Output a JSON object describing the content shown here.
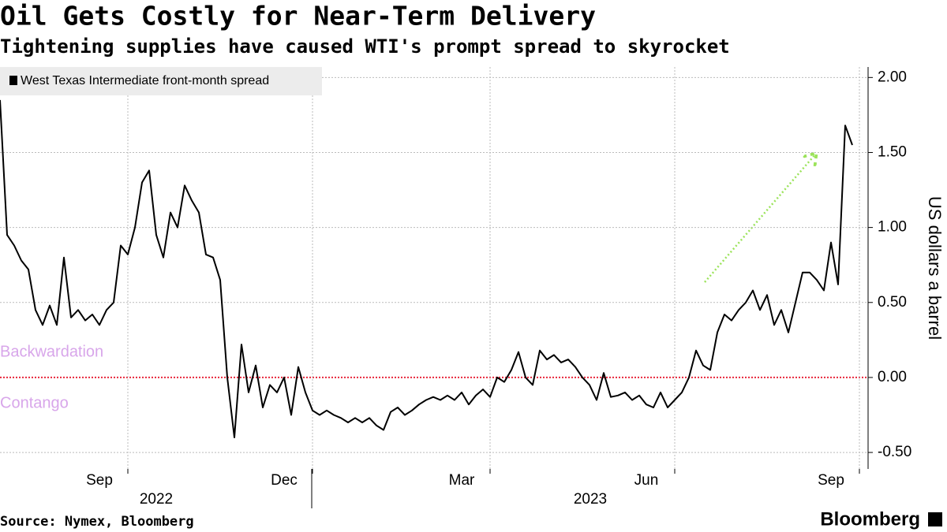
{
  "chart_data": {
    "type": "line",
    "title": "Oil Gets Costly for Near-Term Delivery",
    "subtitle": "Tightening supplies have caused WTI's prompt spread to skyrocket",
    "y_label": "US dollars a barrel",
    "source": "Source: Nymex, Bloomberg",
    "brand": "Bloomberg",
    "annotations": [
      "Backwardation",
      "Contango"
    ],
    "years": [
      "2022",
      "2023"
    ],
    "categories": [
      null,
      null,
      null,
      null,
      null,
      null,
      null,
      null,
      null,
      null,
      null,
      null,
      null,
      null,
      "Sep",
      null,
      null,
      null,
      null,
      null,
      null,
      null,
      null,
      null,
      null,
      null,
      null,
      null,
      null,
      null,
      null,
      null,
      null,
      null,
      null,
      null,
      null,
      null,
      null,
      null,
      "Dec",
      null,
      null,
      null,
      null,
      null,
      null,
      null,
      null,
      null,
      null,
      null,
      null,
      null,
      null,
      null,
      null,
      null,
      null,
      null,
      null,
      null,
      null,
      null,
      null,
      "Mar",
      null,
      null,
      null,
      null,
      null,
      null,
      null,
      null,
      null,
      null,
      null,
      null,
      null,
      null,
      null,
      null,
      null,
      null,
      null,
      null,
      null,
      null,
      null,
      null,
      null,
      "Jun",
      null,
      null,
      null,
      null,
      null,
      null,
      null,
      null,
      null,
      null,
      null,
      null,
      null,
      null,
      null,
      null,
      null,
      null,
      null,
      null,
      null,
      null,
      null,
      null,
      null,
      "Sep",
      null,
      null,
      null
    ],
    "series": [
      {
        "name": "West Texas Intermediate front-month spread",
        "color": "#000000",
        "values": [
          1.85,
          0.95,
          0.88,
          0.78,
          0.72,
          0.45,
          0.35,
          0.48,
          0.35,
          0.8,
          0.4,
          0.45,
          0.38,
          0.42,
          0.35,
          0.45,
          0.5,
          0.88,
          0.82,
          1.0,
          1.3,
          1.38,
          0.95,
          0.8,
          1.1,
          1.0,
          1.28,
          1.18,
          1.1,
          0.82,
          0.8,
          0.65,
          0.0,
          -0.4,
          0.22,
          -0.1,
          0.08,
          -0.2,
          -0.05,
          -0.1,
          0.0,
          -0.25,
          0.07,
          -0.1,
          -0.22,
          -0.25,
          -0.22,
          -0.25,
          -0.27,
          -0.3,
          -0.27,
          -0.3,
          -0.27,
          -0.32,
          -0.35,
          -0.23,
          -0.2,
          -0.25,
          -0.22,
          -0.18,
          -0.15,
          -0.13,
          -0.15,
          -0.12,
          -0.15,
          -0.1,
          -0.18,
          -0.12,
          -0.08,
          -0.13,
          0.0,
          -0.03,
          0.05,
          0.17,
          0.0,
          -0.05,
          0.18,
          0.12,
          0.15,
          0.1,
          0.12,
          0.07,
          0.0,
          -0.05,
          -0.15,
          0.03,
          -0.13,
          -0.12,
          -0.1,
          -0.15,
          -0.12,
          -0.18,
          -0.2,
          -0.1,
          -0.2,
          -0.15,
          -0.1,
          0.0,
          0.18,
          0.08,
          0.05,
          0.3,
          0.42,
          0.38,
          0.45,
          0.5,
          0.58,
          0.45,
          0.55,
          0.35,
          0.45,
          0.3,
          0.5,
          0.7,
          0.7,
          0.65,
          0.58,
          0.9,
          0.62,
          1.68,
          1.55
        ]
      }
    ],
    "ylim": [
      -0.61,
      2.07
    ],
    "yticks": [
      {
        "value": -0.5,
        "label": "-0.50"
      },
      {
        "value": 0,
        "label": "0.00"
      },
      {
        "value": 0.5,
        "label": "0.50"
      },
      {
        "value": 1,
        "label": "1.00"
      },
      {
        "value": 1.5,
        "label": "1.50"
      },
      {
        "value": 2,
        "label": "2.00"
      }
    ],
    "grid": true
  }
}
